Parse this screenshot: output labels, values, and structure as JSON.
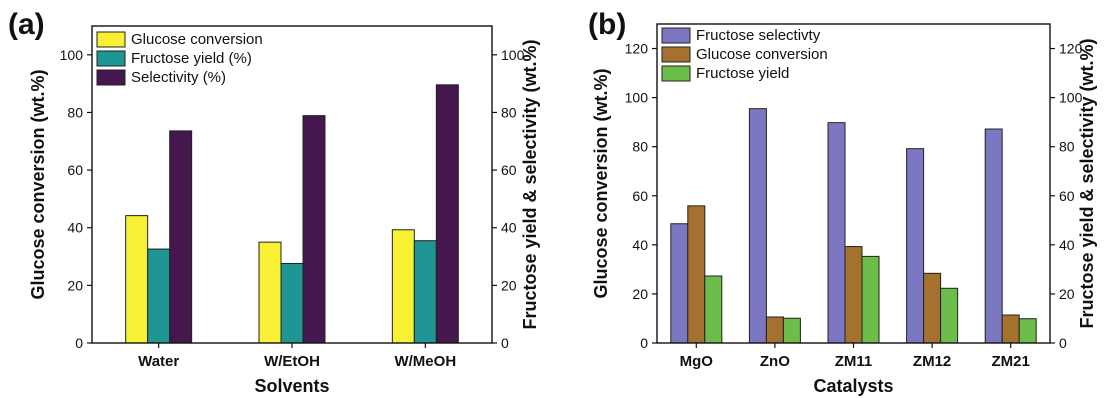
{
  "chart_data": [
    {
      "type": "bar",
      "panel_label": "(a)",
      "categories": [
        "Water",
        "W/EtOH",
        "W/MeOH"
      ],
      "series": [
        {
          "name": "Glucose conversion",
          "values": [
            44.2,
            35.0,
            39.3
          ],
          "color": "#f7f035",
          "axis": "left"
        },
        {
          "name": "Fructose yield (%)",
          "values": [
            32.6,
            27.6,
            35.5
          ],
          "color": "#1f9595",
          "axis": "right"
        },
        {
          "name": "Selectivity (%)",
          "values": [
            73.6,
            78.9,
            89.6
          ],
          "color": "#46174e",
          "axis": "right"
        }
      ],
      "xlabel": "Solvents",
      "ylabel": "Glucose conversion (wt.%)",
      "ylabel_right": "Fructose yield & selectivity (wt.%)",
      "ylim": [
        0,
        110
      ],
      "yticks": [
        0,
        20,
        40,
        60,
        80,
        100
      ],
      "legend_position": "top-left",
      "grid": false
    },
    {
      "type": "bar",
      "panel_label": "(b)",
      "categories": [
        "MgO",
        "ZnO",
        "ZM11",
        "ZM12",
        "ZM21"
      ],
      "series": [
        {
          "name": "Fructose selectivty",
          "values": [
            48.6,
            95.5,
            89.8,
            79.2,
            87.2
          ],
          "color": "#7b77c0",
          "axis": "right"
        },
        {
          "name": "Glucose conversion",
          "values": [
            55.9,
            10.6,
            39.3,
            28.4,
            11.4
          ],
          "color": "#a5712e",
          "axis": "left"
        },
        {
          "name": "Fructose yield",
          "values": [
            27.3,
            10.1,
            35.3,
            22.3,
            9.9
          ],
          "color": "#6cbd4a",
          "axis": "right"
        }
      ],
      "xlabel": "Catalysts",
      "ylabel": "Glucose conversion (wt.%)",
      "ylabel_right": "Fructose yield & selectivity (wt.%)",
      "ylim": [
        0,
        130
      ],
      "yticks": [
        0,
        20,
        40,
        60,
        80,
        100,
        120
      ],
      "legend_position": "top-left",
      "grid": false
    }
  ]
}
